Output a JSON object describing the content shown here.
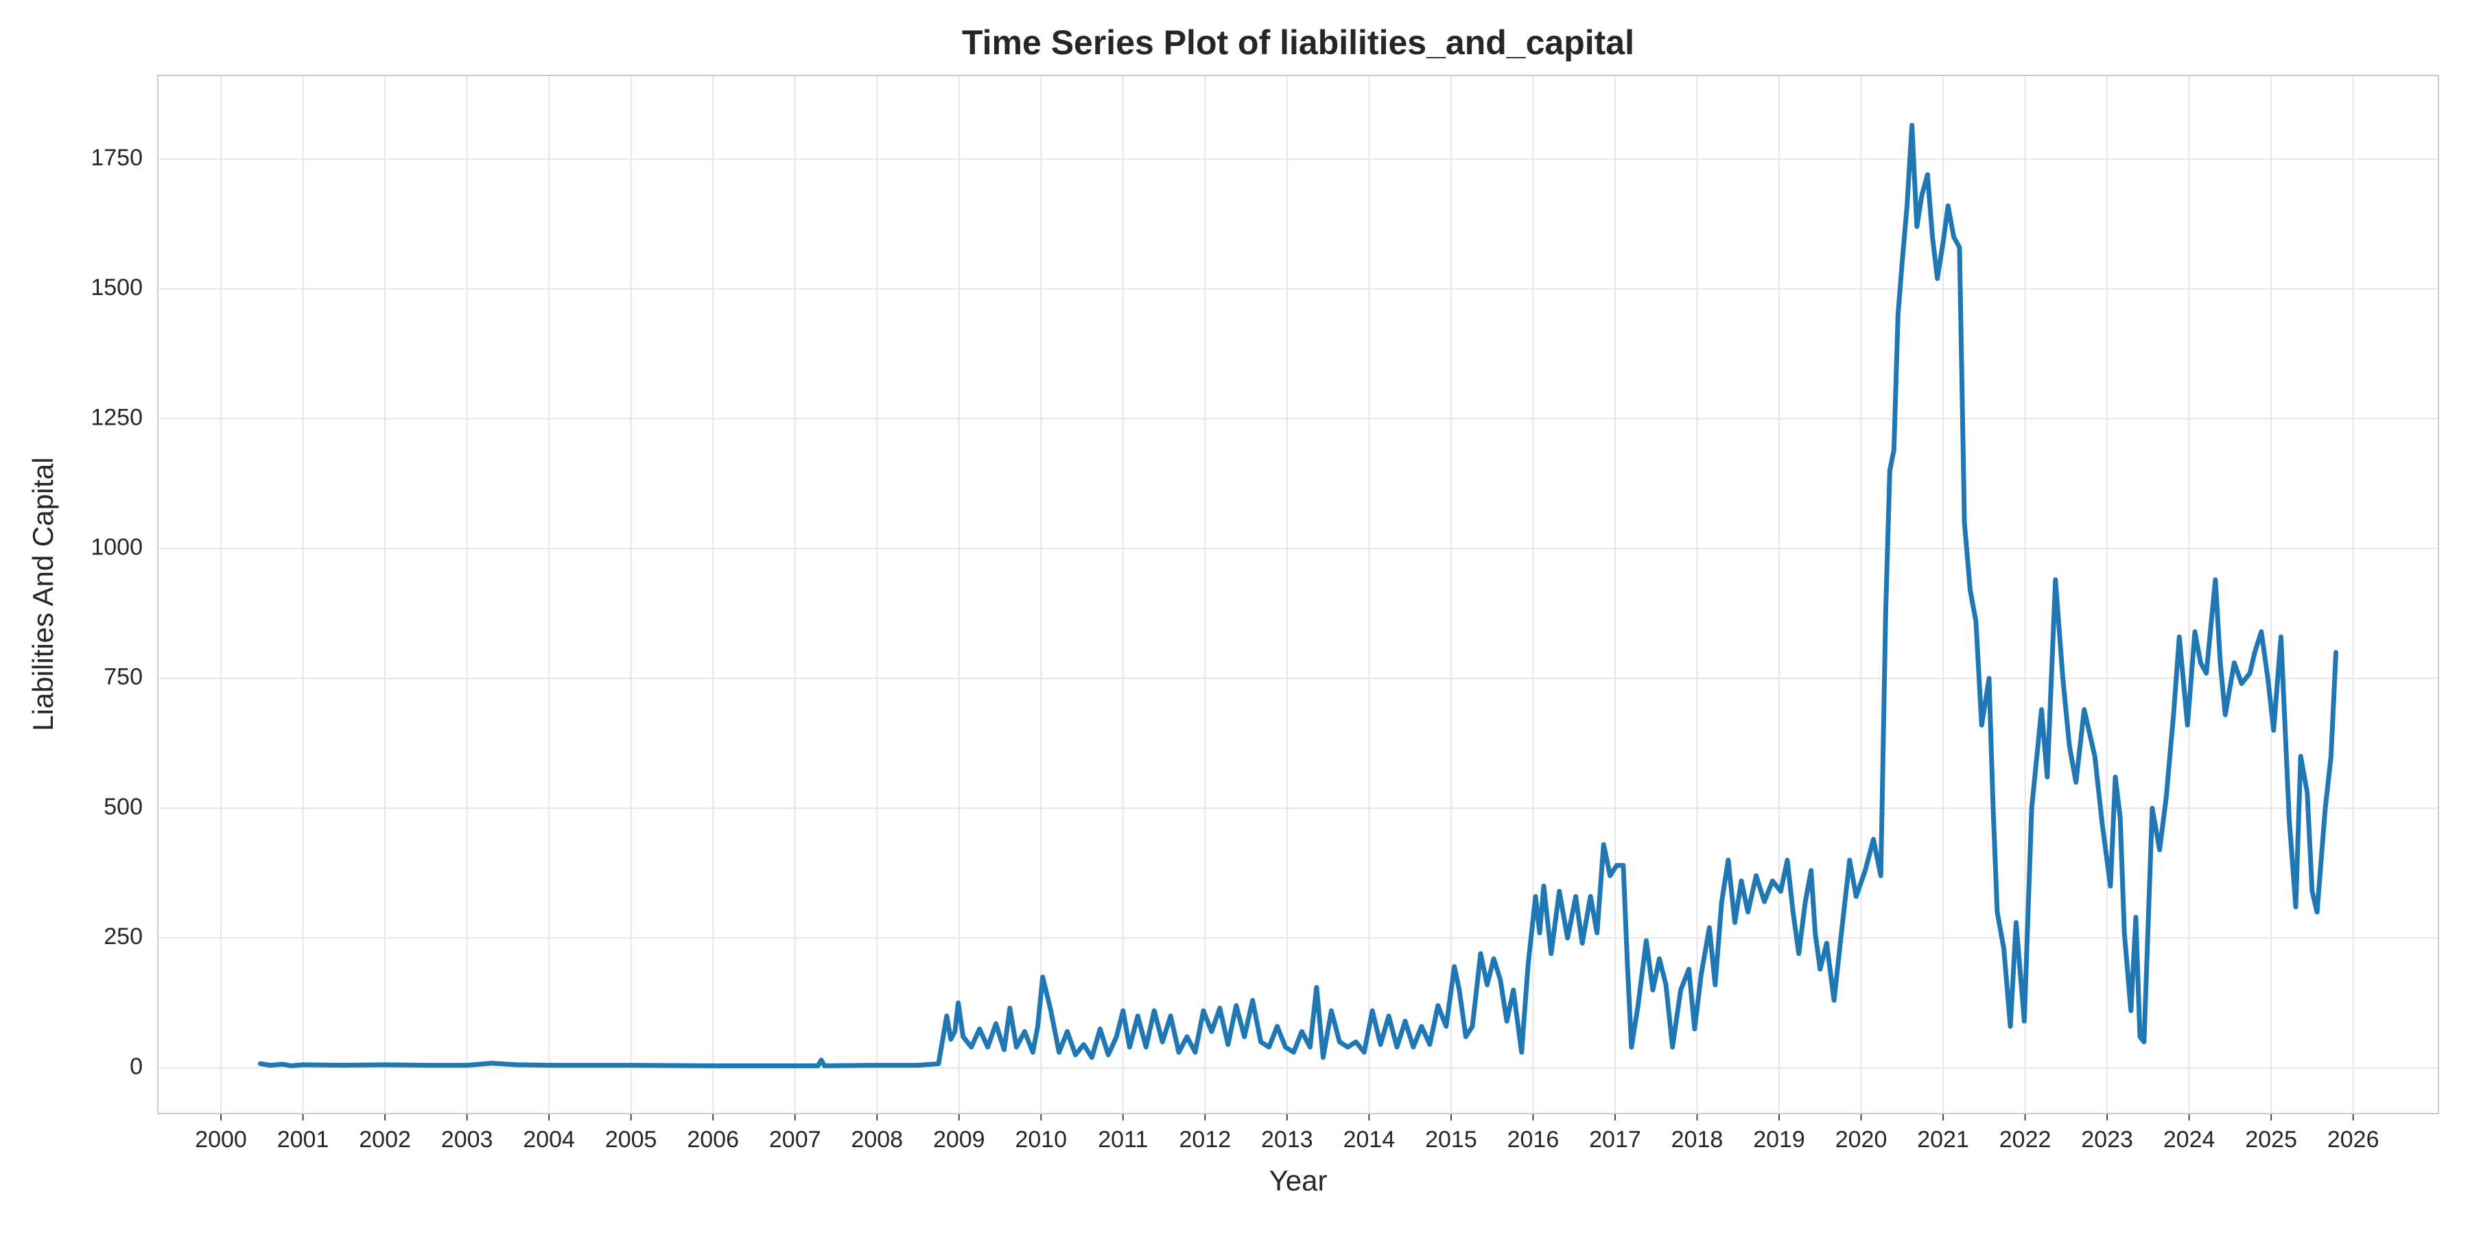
{
  "chart_data": {
    "type": "line",
    "title": "Time Series Plot of liabilities_and_capital",
    "xlabel": "Year",
    "ylabel": "Liabilities And Capital",
    "color": "#1f77b4",
    "grid": true,
    "x": [
      2000.48,
      2000.6,
      2000.75,
      2000.85,
      2001.0,
      2001.5,
      2002.0,
      2002.5,
      2003.0,
      2003.3,
      2003.6,
      2004.0,
      2005.0,
      2006.0,
      2007.0,
      2007.28,
      2007.32,
      2007.36,
      2008.0,
      2008.5,
      2008.75,
      2008.85,
      2008.9,
      2008.95,
      2008.99,
      2009.05,
      2009.15,
      2009.25,
      2009.35,
      2009.45,
      2009.55,
      2009.62,
      2009.7,
      2009.8,
      2009.9,
      2009.96,
      2010.02,
      2010.12,
      2010.22,
      2010.32,
      2010.42,
      2010.52,
      2010.62,
      2010.72,
      2010.82,
      2010.92,
      2011.0,
      2011.08,
      2011.18,
      2011.28,
      2011.38,
      2011.48,
      2011.58,
      2011.68,
      2011.78,
      2011.88,
      2011.98,
      2012.08,
      2012.18,
      2012.28,
      2012.38,
      2012.48,
      2012.58,
      2012.68,
      2012.78,
      2012.88,
      2012.98,
      2013.08,
      2013.18,
      2013.28,
      2013.36,
      2013.44,
      2013.54,
      2013.64,
      2013.74,
      2013.84,
      2013.94,
      2014.04,
      2014.14,
      2014.24,
      2014.34,
      2014.44,
      2014.54,
      2014.64,
      2014.74,
      2014.84,
      2014.94,
      2015.04,
      2015.1,
      2015.18,
      2015.26,
      2015.36,
      2015.44,
      2015.52,
      2015.6,
      2015.68,
      2015.76,
      2015.86,
      2015.94,
      2016.03,
      2016.08,
      2016.13,
      2016.22,
      2016.32,
      2016.42,
      2016.52,
      2016.6,
      2016.7,
      2016.78,
      2016.86,
      2016.94,
      2017.02,
      2017.1,
      2017.15,
      2017.2,
      2017.28,
      2017.38,
      2017.46,
      2017.54,
      2017.62,
      2017.7,
      2017.8,
      2017.9,
      2017.97,
      2018.05,
      2018.15,
      2018.22,
      2018.3,
      2018.38,
      2018.46,
      2018.54,
      2018.62,
      2018.72,
      2018.82,
      2018.92,
      2019.02,
      2019.1,
      2019.17,
      2019.24,
      2019.32,
      2019.39,
      2019.44,
      2019.5,
      2019.58,
      2019.67,
      2019.76,
      2019.86,
      2019.94,
      2020.05,
      2020.15,
      2020.24,
      2020.3,
      2020.35,
      2020.4,
      2020.45,
      2020.5,
      2020.56,
      2020.62,
      2020.68,
      2020.74,
      2020.81,
      2020.87,
      2020.93,
      2021.0,
      2021.06,
      2021.13,
      2021.2,
      2021.26,
      2021.33,
      2021.4,
      2021.47,
      2021.56,
      2021.61,
      2021.66,
      2021.74,
      2021.82,
      2021.89,
      2021.99,
      2022.08,
      2022.2,
      2022.27,
      2022.37,
      2022.46,
      2022.54,
      2022.62,
      2022.72,
      2022.85,
      2022.94,
      2023.04,
      2023.1,
      2023.16,
      2023.21,
      2023.29,
      2023.35,
      2023.4,
      2023.45,
      2023.55,
      2023.64,
      2023.72,
      2023.81,
      2023.88,
      2023.98,
      2024.07,
      2024.14,
      2024.21,
      2024.32,
      2024.38,
      2024.44,
      2024.55,
      2024.64,
      2024.74,
      2024.8,
      2024.88,
      2024.96,
      2025.03,
      2025.12,
      2025.22,
      2025.3,
      2025.36,
      2025.44,
      2025.5,
      2025.56,
      2025.66,
      2025.73,
      2025.79
    ],
    "values": [
      8,
      5,
      7,
      4,
      6,
      5,
      6,
      5,
      5,
      9,
      6,
      5,
      5,
      4,
      4,
      4,
      15,
      4,
      5,
      5,
      8,
      100,
      55,
      70,
      125,
      60,
      40,
      75,
      40,
      85,
      35,
      115,
      40,
      70,
      30,
      80,
      175,
      110,
      30,
      70,
      25,
      45,
      20,
      75,
      25,
      60,
      110,
      40,
      100,
      40,
      110,
      50,
      100,
      30,
      60,
      30,
      110,
      70,
      115,
      45,
      120,
      60,
      130,
      50,
      40,
      80,
      40,
      30,
      70,
      40,
      155,
      20,
      110,
      50,
      40,
      50,
      30,
      110,
      45,
      100,
      40,
      90,
      40,
      80,
      45,
      120,
      80,
      195,
      150,
      60,
      80,
      220,
      160,
      210,
      170,
      90,
      150,
      30,
      200,
      330,
      260,
      350,
      220,
      340,
      250,
      330,
      240,
      330,
      260,
      430,
      370,
      390,
      390,
      200,
      40,
      120,
      245,
      150,
      210,
      160,
      40,
      150,
      190,
      75,
      180,
      270,
      160,
      320,
      400,
      280,
      360,
      300,
      370,
      320,
      360,
      340,
      400,
      300,
      220,
      320,
      380,
      260,
      190,
      240,
      130,
      260,
      400,
      330,
      380,
      440,
      370,
      880,
      1150,
      1190,
      1450,
      1550,
      1660,
      1815,
      1620,
      1680,
      1720,
      1600,
      1520,
      1590,
      1660,
      1600,
      1580,
      1050,
      920,
      860,
      660,
      750,
      500,
      300,
      230,
      80,
      280,
      90,
      500,
      690,
      560,
      940,
      750,
      620,
      550,
      690,
      600,
      470,
      350,
      560,
      480,
      260,
      110,
      290,
      60,
      50,
      500,
      420,
      520,
      680,
      830,
      660,
      840,
      780,
      760,
      940,
      780,
      680,
      780,
      740,
      760,
      800,
      840,
      750,
      650,
      830,
      480,
      310,
      600,
      530,
      340,
      300,
      500,
      600,
      800
    ],
    "xlim": [
      1999.23,
      2027.04
    ],
    "xticks": [
      2000,
      2001,
      2002,
      2003,
      2004,
      2005,
      2006,
      2007,
      2008,
      2009,
      2010,
      2011,
      2012,
      2013,
      2014,
      2015,
      2016,
      2017,
      2018,
      2019,
      2020,
      2021,
      2022,
      2023,
      2024,
      2025,
      2026
    ],
    "ylim": [
      -88,
      1911
    ],
    "yticks": [
      0,
      250,
      500,
      750,
      1000,
      1250,
      1500,
      1750
    ]
  }
}
